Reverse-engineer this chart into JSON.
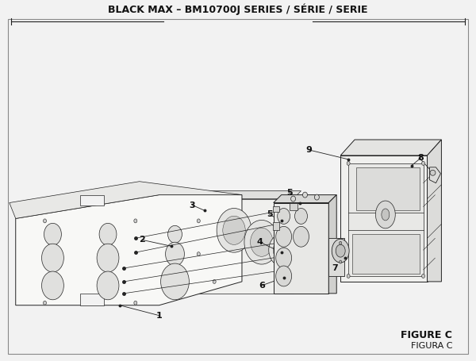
{
  "title": "BLACK MAX – BM10700J SERIES / SÉRIE / SERIE",
  "figure_label": "FIGURE C",
  "figure_label2": "FIGURA C",
  "bg_color": "#f2f2f2",
  "line_color": "#222222",
  "text_color": "#111111",
  "title_fontsize": 9,
  "label_fontsize": 8,
  "figsize": [
    6.0,
    4.55
  ],
  "dpi": 100
}
